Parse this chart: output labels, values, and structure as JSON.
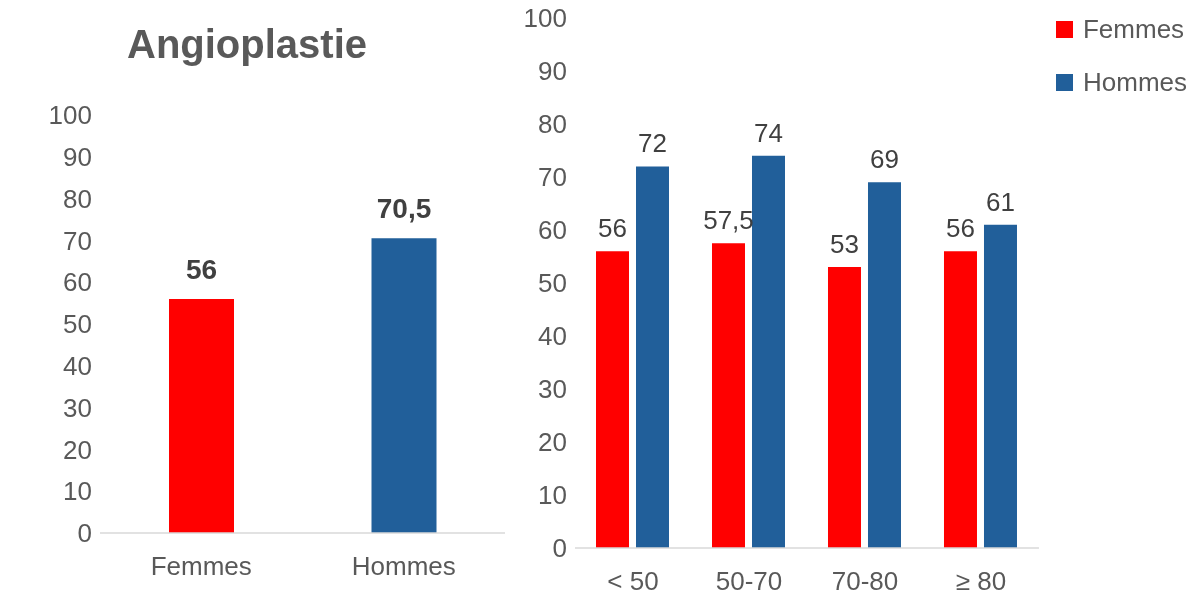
{
  "chart_data": [
    {
      "type": "bar",
      "title": "Angioplastie",
      "categories": [
        "Femmes",
        "Hommes"
      ],
      "values": [
        56,
        70.5
      ],
      "colors": [
        "#ff0000",
        "#215f9a"
      ],
      "value_labels": [
        "56",
        "70,5"
      ],
      "ylim": [
        0,
        100
      ],
      "yticks": [
        0,
        10,
        20,
        30,
        40,
        50,
        60,
        70,
        80,
        90,
        100
      ],
      "grid": false,
      "legend": false
    },
    {
      "type": "bar",
      "categories": [
        "< 50",
        "50-70",
        "70-80",
        "≥ 80"
      ],
      "series": [
        {
          "name": "Femmes",
          "color": "#ff0000",
          "values": [
            56,
            57.5,
            53,
            56
          ],
          "value_labels": [
            "56",
            "57,5",
            "53",
            "56"
          ]
        },
        {
          "name": "Hommes",
          "color": "#215f9a",
          "values": [
            72,
            74,
            69,
            61
          ],
          "value_labels": [
            "72",
            "74",
            "69",
            "61"
          ]
        }
      ],
      "ylim": [
        0,
        100
      ],
      "yticks": [
        0,
        10,
        20,
        30,
        40,
        50,
        60,
        70,
        80,
        90,
        100
      ],
      "grid": false,
      "legend": "top right"
    }
  ]
}
